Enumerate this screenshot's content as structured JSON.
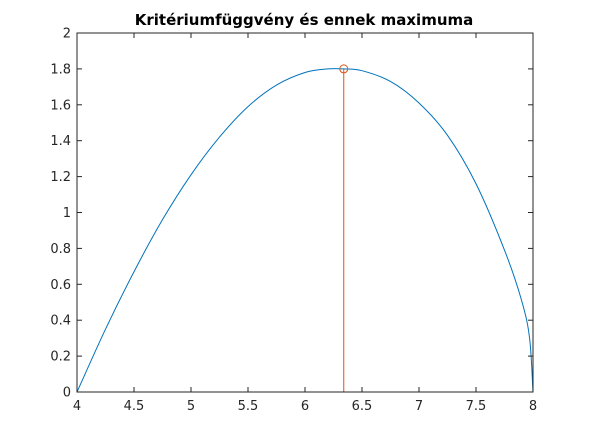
{
  "chart_data": {
    "type": "line",
    "title": "Kritériumfüggvény és ennek maximuma",
    "xlabel": "",
    "ylabel": "",
    "xlim": [
      4,
      8
    ],
    "ylim": [
      0,
      2
    ],
    "xticks": [
      4,
      4.5,
      5,
      5.5,
      6,
      6.5,
      7,
      7.5,
      8
    ],
    "xtick_labels": [
      "4",
      "4.5",
      "5",
      "5.5",
      "6",
      "6.5",
      "7",
      "7.5",
      "8"
    ],
    "yticks": [
      0,
      0.2,
      0.4,
      0.6,
      0.8,
      1,
      1.2,
      1.4,
      1.6,
      1.8,
      2
    ],
    "ytick_labels": [
      "0",
      "0.2",
      "0.4",
      "0.6",
      "0.8",
      "1",
      "1.2",
      "1.4",
      "1.6",
      "1.8",
      "2"
    ],
    "grid": false,
    "series": [
      {
        "color": "#0072bd",
        "x": [
          4.0,
          4.25,
          4.5,
          4.75,
          5.0,
          5.25,
          5.5,
          5.75,
          6.0,
          6.2,
          6.34,
          6.5,
          6.75,
          7.0,
          7.25,
          7.5,
          7.75,
          7.9,
          7.97,
          8.0
        ],
        "y": [
          0.0,
          0.35,
          0.67,
          0.96,
          1.21,
          1.42,
          1.59,
          1.71,
          1.78,
          1.8,
          1.8,
          1.79,
          1.73,
          1.61,
          1.43,
          1.16,
          0.79,
          0.51,
          0.3,
          0.0
        ]
      }
    ],
    "maximum": {
      "x": 6.34,
      "y": 1.8,
      "color": "#d95319",
      "marker": "circle"
    }
  }
}
